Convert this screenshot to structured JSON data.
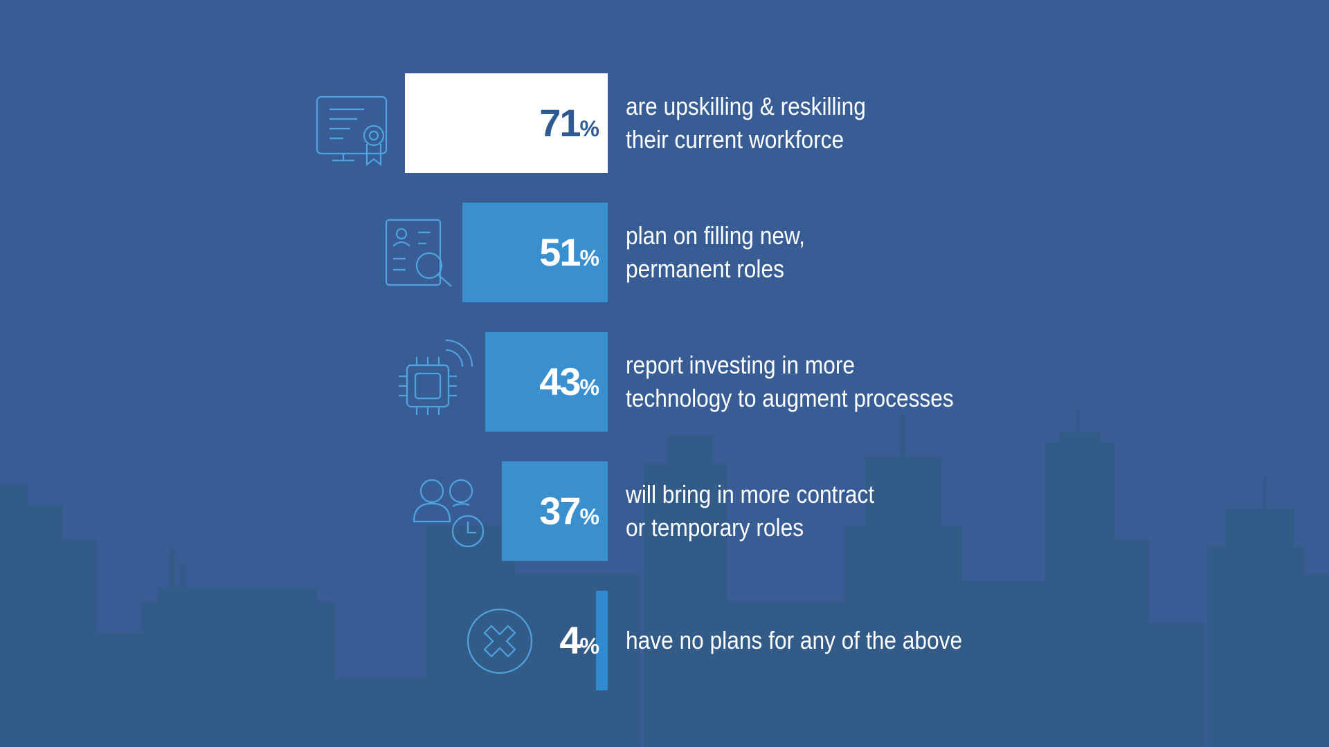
{
  "chart_data": {
    "type": "bar",
    "orientation": "horizontal",
    "categories": [
      "are upskilling & reskilling\ntheir current workforce",
      "plan on filling new,\npermanent roles",
      "report investing in more\ntechnology to augment processes",
      "will bring in more contract\nor temporary roles",
      "have no plans for any of the above"
    ],
    "values": [
      71,
      51,
      43,
      37,
      4
    ],
    "value_labels": [
      "71%",
      "51%",
      "43%",
      "37%",
      "4%"
    ],
    "colors": [
      "#ffffff",
      "#3a8fcf",
      "#3a8fcf",
      "#3a8fcf",
      "#2f8ad0"
    ],
    "label_colors": [
      "#2f5a94",
      "#ffffff",
      "#ffffff",
      "#ffffff",
      "#ffffff"
    ]
  }
}
